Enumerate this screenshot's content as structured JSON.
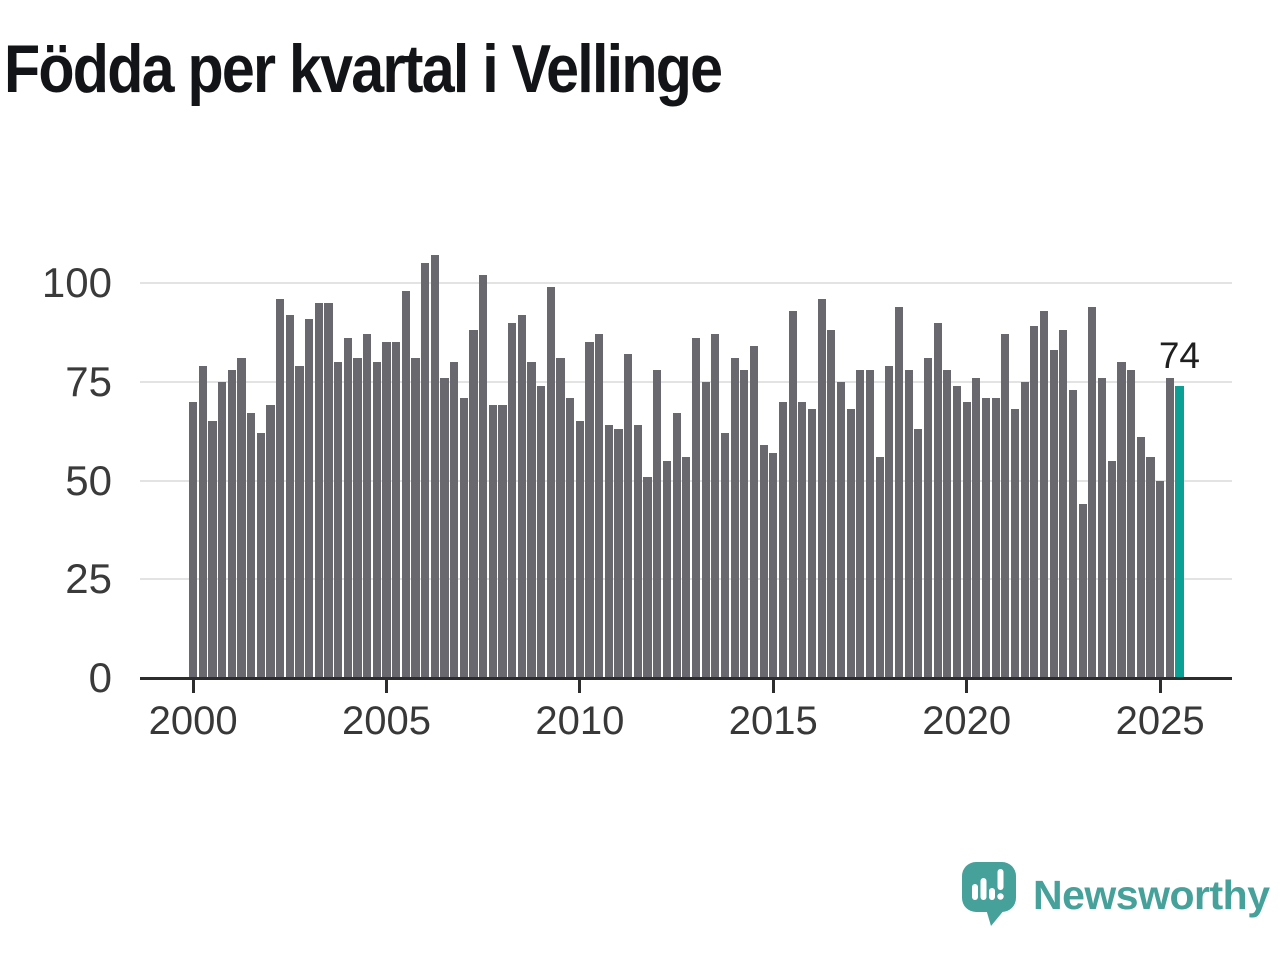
{
  "title": "Födda per kvartal i Vellinge",
  "annotation": {
    "last_value_label": "74"
  },
  "logo": {
    "brand": "Newsworthy",
    "icon": "newsworthy-chart-bubble-icon"
  },
  "colors": {
    "bar": "#69686f",
    "highlight": "#0aa096",
    "logo_teal": "#46a19b",
    "grid": "#e3e3e3",
    "axis": "#2d2d2d",
    "title_text": "#131417",
    "tick_text": "#383838"
  },
  "chart_data": {
    "type": "bar",
    "title": "Födda per kvartal i Vellinge",
    "frequency": "quarterly",
    "x_start": "2000-Q1",
    "x_end": "2025-Q3",
    "values": [
      70,
      79,
      65,
      75,
      78,
      81,
      67,
      62,
      69,
      96,
      92,
      79,
      91,
      95,
      95,
      80,
      86,
      81,
      87,
      80,
      85,
      85,
      98,
      81,
      105,
      107,
      76,
      80,
      71,
      88,
      102,
      69,
      69,
      90,
      92,
      80,
      74,
      99,
      81,
      71,
      65,
      85,
      87,
      64,
      63,
      82,
      64,
      51,
      78,
      55,
      67,
      56,
      86,
      75,
      87,
      62,
      81,
      78,
      84,
      59,
      57,
      70,
      93,
      70,
      68,
      96,
      88,
      75,
      68,
      78,
      78,
      56,
      79,
      94,
      78,
      63,
      81,
      90,
      78,
      74,
      70,
      76,
      71,
      71,
      87,
      68,
      75,
      89,
      93,
      83,
      88,
      73,
      44,
      94,
      76,
      55,
      80,
      78,
      61,
      56,
      50,
      76,
      74
    ],
    "highlight": {
      "index": 102,
      "value": 74,
      "label": "74"
    },
    "x_tick_labels": [
      "2000",
      "2005",
      "2010",
      "2015",
      "2020",
      "2025"
    ],
    "x_tick_positions": [
      0,
      20,
      40,
      60,
      80,
      100
    ],
    "y_ticks": [
      0,
      25,
      50,
      75,
      100
    ],
    "y_tick_labels": [
      "0",
      "25",
      "50",
      "75",
      "100"
    ],
    "ylim": [
      0,
      110
    ],
    "grid": "horizontal",
    "legend": "none"
  }
}
